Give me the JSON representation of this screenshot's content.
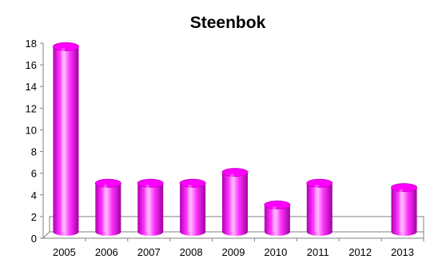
{
  "chart_data": {
    "type": "bar",
    "title": "Steenbok",
    "xlabel": "",
    "ylabel": "",
    "categories": [
      "2005",
      "2006",
      "2007",
      "2008",
      "2009",
      "2010",
      "2011",
      "2012",
      "2013"
    ],
    "values": [
      17.6,
      5.0,
      5.0,
      5.0,
      6.0,
      3.0,
      5.0,
      0,
      4.6
    ],
    "ylim": [
      0,
      18
    ],
    "yticks": [
      "0",
      "2",
      "4",
      "6",
      "8",
      "10",
      "12",
      "14",
      "16",
      "18"
    ],
    "grid": false,
    "legend": "none",
    "bar_style": "3d-cylinder",
    "colors": {
      "bar": "#ff00ff",
      "bar_dark": "#cc00cc",
      "bar_highlight": "#ffd6ff",
      "axis": "#808080",
      "floor": "#808080"
    }
  }
}
